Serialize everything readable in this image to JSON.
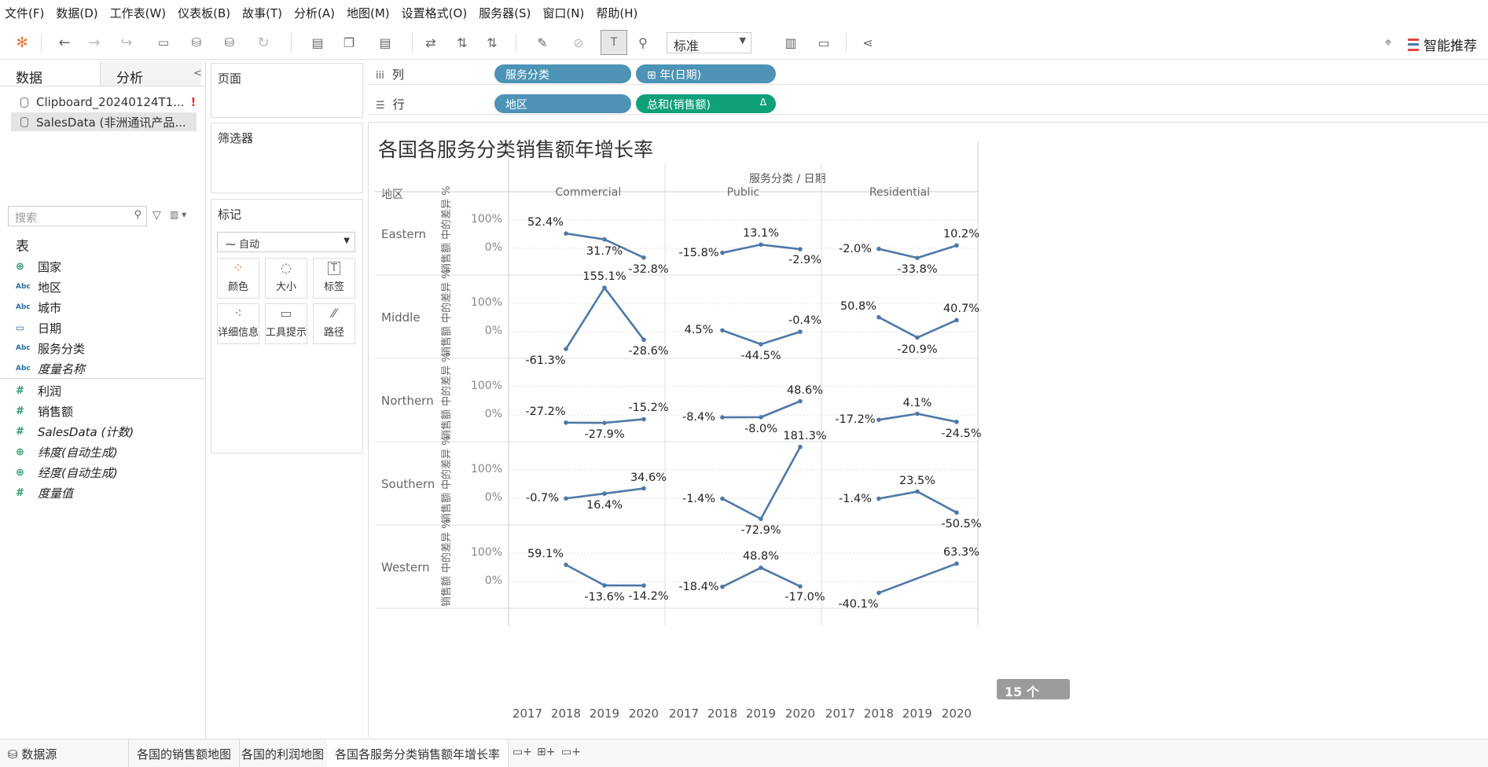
{
  "menu": [
    "文件(F)",
    "数据(D)",
    "工作表(W)",
    "仪表板(B)",
    "故事(T)",
    "分析(A)",
    "地图(M)",
    "设置格式(O)",
    "服务器(S)",
    "窗口(N)",
    "帮助(H)"
  ],
  "toolbar": {
    "fit_select": "标准",
    "smart_recommend": "智能推荐"
  },
  "left_pane": {
    "tab_data": "数据",
    "tab_analysis": "分析",
    "datasources": [
      {
        "name": "Clipboard_20240124T1...",
        "warning": "!"
      },
      {
        "name": "SalesData (非洲通讯产品..."
      }
    ],
    "search_placeholder": "搜索",
    "section_table": "表",
    "dimensions": [
      {
        "icon": "geo",
        "name": "国家"
      },
      {
        "icon": "Abc",
        "name": "地区"
      },
      {
        "icon": "Abc",
        "name": "城市"
      },
      {
        "icon": "date",
        "name": "日期"
      },
      {
        "icon": "Abc",
        "name": "服务分类"
      },
      {
        "icon": "Abc",
        "name": "度量名称"
      }
    ],
    "measures": [
      {
        "icon": "#",
        "name": "利润"
      },
      {
        "icon": "#",
        "name": "销售额"
      },
      {
        "icon": "#",
        "name": "SalesData (计数)"
      },
      {
        "icon": "geo",
        "name": "纬度(自动生成)"
      },
      {
        "icon": "geo",
        "name": "经度(自动生成)"
      },
      {
        "icon": "#",
        "name": "度量值"
      }
    ]
  },
  "cards": {
    "pages": "页面",
    "filters": "筛选器",
    "marks": "标记",
    "mark_type": "自动",
    "buttons": [
      "颜色",
      "大小",
      "标签",
      "详细信息",
      "工具提示",
      "路径"
    ]
  },
  "shelves": {
    "columns_label": "列",
    "rows_label": "行",
    "col_pills": [
      "服务分类",
      "年(日期)"
    ],
    "row_pills": [
      "地区",
      "总和(销售额)"
    ],
    "row_delta": "Δ"
  },
  "view": {
    "title": "各国各服务分类销售额年增长率",
    "col_header": "服务分类 / 日期",
    "row_dim_header": "地区",
    "y_axis_label": "销售额 中的差异 %",
    "null_badge": "15 个 null"
  },
  "chart_data": {
    "type": "line",
    "columns": [
      "Commercial",
      "Public",
      "Residential"
    ],
    "rows": [
      "Eastern",
      "Middle",
      "Northern",
      "Southern",
      "Western"
    ],
    "x": [
      "2017",
      "2018",
      "2019",
      "2020"
    ],
    "y_ticks": [
      "100%",
      "0%"
    ],
    "line_color": "#4e79a7",
    "cells": {
      "Eastern": {
        "Commercial": [
          null,
          52.4,
          31.7,
          -32.8
        ],
        "Public": [
          null,
          -15.8,
          13.1,
          -2.9
        ],
        "Residential": [
          null,
          -2.0,
          -33.8,
          10.2
        ]
      },
      "Middle": {
        "Commercial": [
          null,
          -61.3,
          155.1,
          -28.6
        ],
        "Public": [
          null,
          4.5,
          -44.5,
          -0.4
        ],
        "Residential": [
          null,
          50.8,
          -20.9,
          40.7
        ]
      },
      "Northern": {
        "Commercial": [
          null,
          -27.2,
          -27.9,
          -15.2
        ],
        "Public": [
          null,
          -8.4,
          -8.0,
          48.6
        ],
        "Residential": [
          null,
          -17.2,
          4.1,
          -24.5
        ]
      },
      "Southern": {
        "Commercial": [
          null,
          -0.7,
          16.4,
          34.6
        ],
        "Public": [
          null,
          -1.4,
          -72.9,
          181.3
        ],
        "Residential": [
          null,
          -1.4,
          23.5,
          -50.5
        ]
      },
      "Western": {
        "Commercial": [
          null,
          59.1,
          -13.6,
          -14.2
        ],
        "Public": [
          null,
          -18.4,
          48.8,
          -17.0
        ],
        "Residential": [
          null,
          -40.1,
          null,
          63.3
        ]
      }
    },
    "labels": {
      "Eastern": {
        "Commercial": [
          null,
          "52.4%",
          "31.7%",
          "-32.8%"
        ],
        "Public": [
          null,
          "-15.8%",
          "13.1%",
          "-2.9%"
        ],
        "Residential": [
          null,
          "-2.0%",
          "-33.8%",
          "10.2%"
        ]
      },
      "Middle": {
        "Commercial": [
          null,
          "-61.3%",
          "155.1%",
          "-28.6%"
        ],
        "Public": [
          null,
          "4.5%",
          "-44.5%",
          "-0.4%"
        ],
        "Residential": [
          null,
          "50.8%",
          "-20.9%",
          "40.7%"
        ]
      },
      "Northern": {
        "Commercial": [
          null,
          "-27.2%",
          "-27.9%",
          "-15.2%"
        ],
        "Public": [
          null,
          "-8.4%",
          "-8.0%",
          "48.6%"
        ],
        "Residential": [
          null,
          "-17.2%",
          "4.1%",
          "-24.5%"
        ]
      },
      "Southern": {
        "Commercial": [
          null,
          "-0.7%",
          "16.4%",
          "34.6%"
        ],
        "Public": [
          null,
          "-1.4%",
          "-72.9%",
          "181.3%"
        ],
        "Residential": [
          null,
          "-1.4%",
          "23.5%",
          "-50.5%"
        ]
      },
      "Western": {
        "Commercial": [
          null,
          "59.1%",
          "-13.6%",
          "-14.2%"
        ],
        "Public": [
          null,
          "-18.4%",
          "48.8%",
          "-17.0%"
        ],
        "Residential": [
          null,
          "-40.1%",
          null,
          "63.3%"
        ]
      }
    }
  },
  "bottom_tabs": [
    "数据源",
    "各国的销售额地图",
    "各国的利润地图",
    "各国各服务分类销售额年增长率"
  ]
}
